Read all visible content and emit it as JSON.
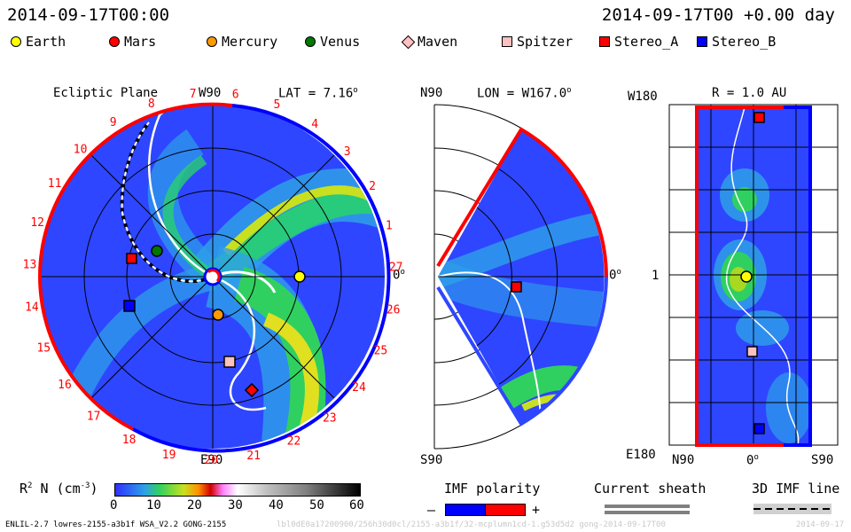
{
  "header": {
    "datetime": "2014-09-17T00:00",
    "run_time": "2014-09-17T00 +0.00 day"
  },
  "legend": [
    {
      "name": "Earth",
      "shape": "circle",
      "color": "#ffff00"
    },
    {
      "name": "Mars",
      "shape": "circle",
      "color": "#ff0000"
    },
    {
      "name": "Mercury",
      "shape": "circle",
      "color": "#ff9900"
    },
    {
      "name": "Venus",
      "shape": "circle",
      "color": "#007700"
    },
    {
      "name": "Maven",
      "shape": "diamond",
      "color": "#ffc0c0"
    },
    {
      "name": "Spitzer",
      "shape": "square",
      "color": "#ffc0c0"
    },
    {
      "name": "Stereo_A",
      "shape": "square",
      "color": "#ff0000"
    },
    {
      "name": "Stereo_B",
      "shape": "square",
      "color": "#0000ff"
    }
  ],
  "ecliptic": {
    "title": "Ecliptic Plane",
    "top_label": "W90",
    "lat_label": "LAT = 7.16",
    "deg_symbol": "o",
    "bottom_label": "E90",
    "right_label": "0",
    "carrington_numbers": [
      "27",
      "1",
      "2",
      "3",
      "4",
      "5",
      "6",
      "7",
      "8",
      "9",
      "10",
      "11",
      "12",
      "13",
      "14",
      "15",
      "16",
      "17",
      "18",
      "19",
      "20",
      "21",
      "22",
      "23",
      "24",
      "25",
      "26"
    ]
  },
  "meridional": {
    "top_left": "N90",
    "lon_label": "LON = W167.0",
    "bottom_left": "S90",
    "right_label": "0"
  },
  "sphere": {
    "r_label": "R = 1.0 AU",
    "top_left": "W180",
    "mid_left": "1",
    "bottom_left": "E180",
    "x_left": "N90",
    "x_mid": "0",
    "x_right": "S90"
  },
  "colorbar": {
    "label": "R",
    "label_sup": "2",
    "label_rest": " N (cm",
    "label_exp": "-3",
    "label_close": ")",
    "ticks": [
      "0",
      "10",
      "20",
      "30",
      "40",
      "50",
      "60"
    ],
    "range": [
      0,
      60
    ]
  },
  "imf_polarity": {
    "title": "IMF polarity",
    "minus": "–",
    "plus": "+"
  },
  "current_sheath": {
    "title": "Current sheath"
  },
  "imf_line": {
    "title": "3D IMF line"
  },
  "footer": {
    "left": "ENLIL-2.7 lowres-2155-a3b1f WSA_V2.2 GONG-2155",
    "middle": "lbl0dE0a17200900/256h30d0cl/2155-a3b1f/32-mcplumn1cd-1.g53d5d2 gong-2014-09-17T00",
    "right": "2014-09-17"
  }
}
